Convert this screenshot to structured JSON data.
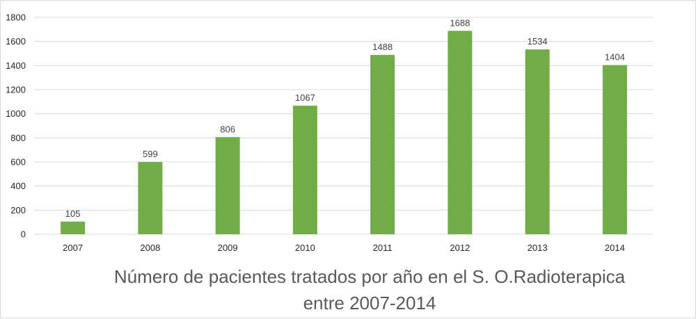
{
  "chart_data": {
    "type": "bar",
    "categories": [
      "2007",
      "2008",
      "2009",
      "2010",
      "2011",
      "2012",
      "2013",
      "2014"
    ],
    "values": [
      105,
      599,
      806,
      1067,
      1488,
      1688,
      1534,
      1404
    ],
    "data_labels": [
      "105",
      "599",
      "806",
      "1067",
      "1488",
      "1688",
      "1534",
      "1404"
    ],
    "yticks": [
      "0",
      "200",
      "400",
      "600",
      "800",
      "1000",
      "1200",
      "1400",
      "1600",
      "1800"
    ],
    "ylim": [
      0,
      1800
    ],
    "title_line1": "Número de pacientes tratados por año en el S. O.Radioterapica",
    "title_line2": "entre 2007-2014",
    "xlabel": "",
    "ylabel": "",
    "grid": true,
    "legend": "none",
    "colors": {
      "bar": "#70ad47",
      "grid": "#d9d9d9",
      "axis": "#d9d9d9",
      "tick_text": "#262626",
      "label_text": "#404040",
      "title_text": "#595959"
    }
  }
}
